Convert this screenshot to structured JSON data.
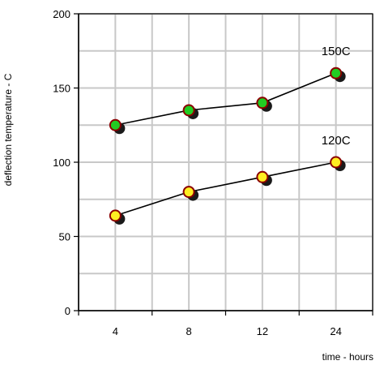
{
  "chart_data": {
    "type": "line",
    "xlabel": "time - hours",
    "ylabel": "deflection temperature - C",
    "categories": [
      "4",
      "8",
      "12",
      "24"
    ],
    "ylim": [
      0,
      200
    ],
    "yticks": [
      0,
      50,
      100,
      150,
      200
    ],
    "grid": true,
    "series": [
      {
        "name": "150C",
        "values": [
          125,
          135,
          140,
          160
        ],
        "marker_color": "#22cc22"
      },
      {
        "name": "120C",
        "values": [
          64,
          80,
          90,
          100
        ],
        "marker_color": "#ffee22"
      }
    ]
  },
  "colors": {
    "grid": "#c8c8c8",
    "axis": "#000000",
    "line": "#000000",
    "marker_outline": "#8b0000",
    "shadow": "#1a1a1a"
  }
}
